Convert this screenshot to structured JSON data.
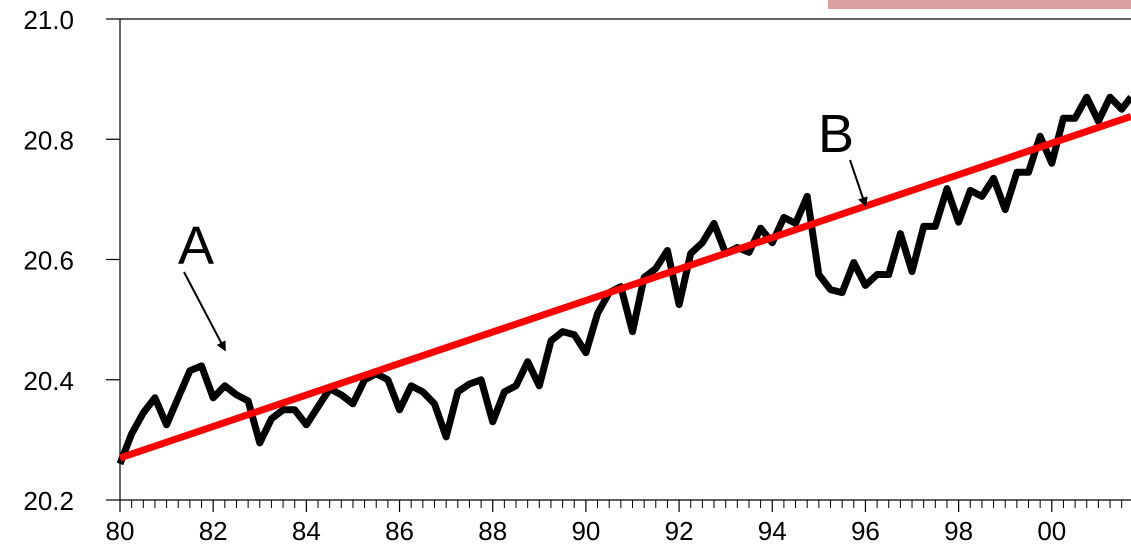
{
  "chart_data": {
    "type": "line",
    "title": "",
    "xlabel": "",
    "ylabel": "",
    "xlim": [
      1980,
      2001.7
    ],
    "ylim": [
      20.2,
      21.0
    ],
    "x_ticks": [
      {
        "value": 1980,
        "label": "80"
      },
      {
        "value": 1982,
        "label": "82"
      },
      {
        "value": 1984,
        "label": "84"
      },
      {
        "value": 1986,
        "label": "86"
      },
      {
        "value": 1988,
        "label": "88"
      },
      {
        "value": 1990,
        "label": "90"
      },
      {
        "value": 1992,
        "label": "92"
      },
      {
        "value": 1994,
        "label": "94"
      },
      {
        "value": 1996,
        "label": "96"
      },
      {
        "value": 1998,
        "label": "98"
      },
      {
        "value": 2000,
        "label": "00"
      }
    ],
    "y_ticks": [
      {
        "value": 20.2,
        "label": "20.2"
      },
      {
        "value": 20.4,
        "label": "20.4"
      },
      {
        "value": 20.6,
        "label": "20.6"
      },
      {
        "value": 20.8,
        "label": "20.8"
      },
      {
        "value": 21.0,
        "label": "21.0"
      }
    ],
    "grid": false,
    "series": [
      {
        "color": "#000000",
        "x": [
          1980.0,
          1980.25,
          1980.5,
          1980.75,
          1981.0,
          1981.25,
          1981.5,
          1981.75,
          1982.0,
          1982.25,
          1982.5,
          1982.75,
          1983.0,
          1983.25,
          1983.5,
          1983.75,
          1984.0,
          1984.25,
          1984.5,
          1984.75,
          1985.0,
          1985.25,
          1985.5,
          1985.75,
          1986.0,
          1986.25,
          1986.5,
          1986.75,
          1987.0,
          1987.25,
          1987.5,
          1987.75,
          1988.0,
          1988.25,
          1988.5,
          1988.75,
          1989.0,
          1989.25,
          1989.5,
          1989.75,
          1990.0,
          1990.25,
          1990.5,
          1990.75,
          1991.0,
          1991.25,
          1991.5,
          1991.75,
          1992.0,
          1992.25,
          1992.5,
          1992.75,
          1993.0,
          1993.25,
          1993.5,
          1993.75,
          1994.0,
          1994.25,
          1994.5,
          1994.75,
          1995.0,
          1995.25,
          1995.5,
          1995.75,
          1996.0,
          1996.25,
          1996.5,
          1996.75,
          1997.0,
          1997.25,
          1997.5,
          1997.75,
          1998.0,
          1998.25,
          1998.5,
          1998.75,
          1999.0,
          1999.25,
          1999.5,
          1999.75,
          2000.0,
          2000.25,
          2000.5,
          2000.75,
          2001.0,
          2001.25,
          2001.5,
          2001.7
        ],
        "values": [
          20.26,
          20.31,
          20.345,
          20.37,
          20.325,
          20.37,
          20.415,
          20.423,
          20.37,
          20.39,
          20.375,
          20.365,
          20.295,
          20.335,
          20.35,
          20.35,
          20.325,
          20.355,
          20.385,
          20.375,
          20.36,
          20.4,
          20.41,
          20.4,
          20.35,
          20.39,
          20.38,
          20.36,
          20.305,
          20.38,
          20.393,
          20.4,
          20.33,
          20.38,
          20.39,
          20.43,
          20.39,
          20.465,
          20.48,
          20.475,
          20.445,
          20.51,
          20.545,
          20.555,
          20.48,
          20.57,
          20.585,
          20.615,
          20.525,
          20.61,
          20.628,
          20.66,
          20.61,
          20.62,
          20.612,
          20.652,
          20.628,
          20.67,
          20.66,
          20.705,
          20.575,
          20.55,
          20.545,
          20.595,
          20.557,
          20.575,
          20.575,
          20.643,
          20.58,
          20.655,
          20.655,
          20.718,
          20.662,
          20.715,
          20.705,
          20.735,
          20.683,
          20.745,
          20.745,
          20.805,
          20.76,
          20.835,
          20.835,
          20.87,
          20.83,
          20.87,
          20.85,
          20.87
        ]
      },
      {
        "color": "#ff0000",
        "type": "trend",
        "x": [
          1980,
          2001.7
        ],
        "values": [
          20.27,
          20.838
        ]
      }
    ],
    "annotations": [
      {
        "text": "A",
        "arrow_to": {
          "x": 1982.25,
          "y": 20.45
        }
      },
      {
        "text": "B",
        "arrow_to": {
          "x": 1996.0,
          "y": 20.69
        }
      }
    ]
  }
}
